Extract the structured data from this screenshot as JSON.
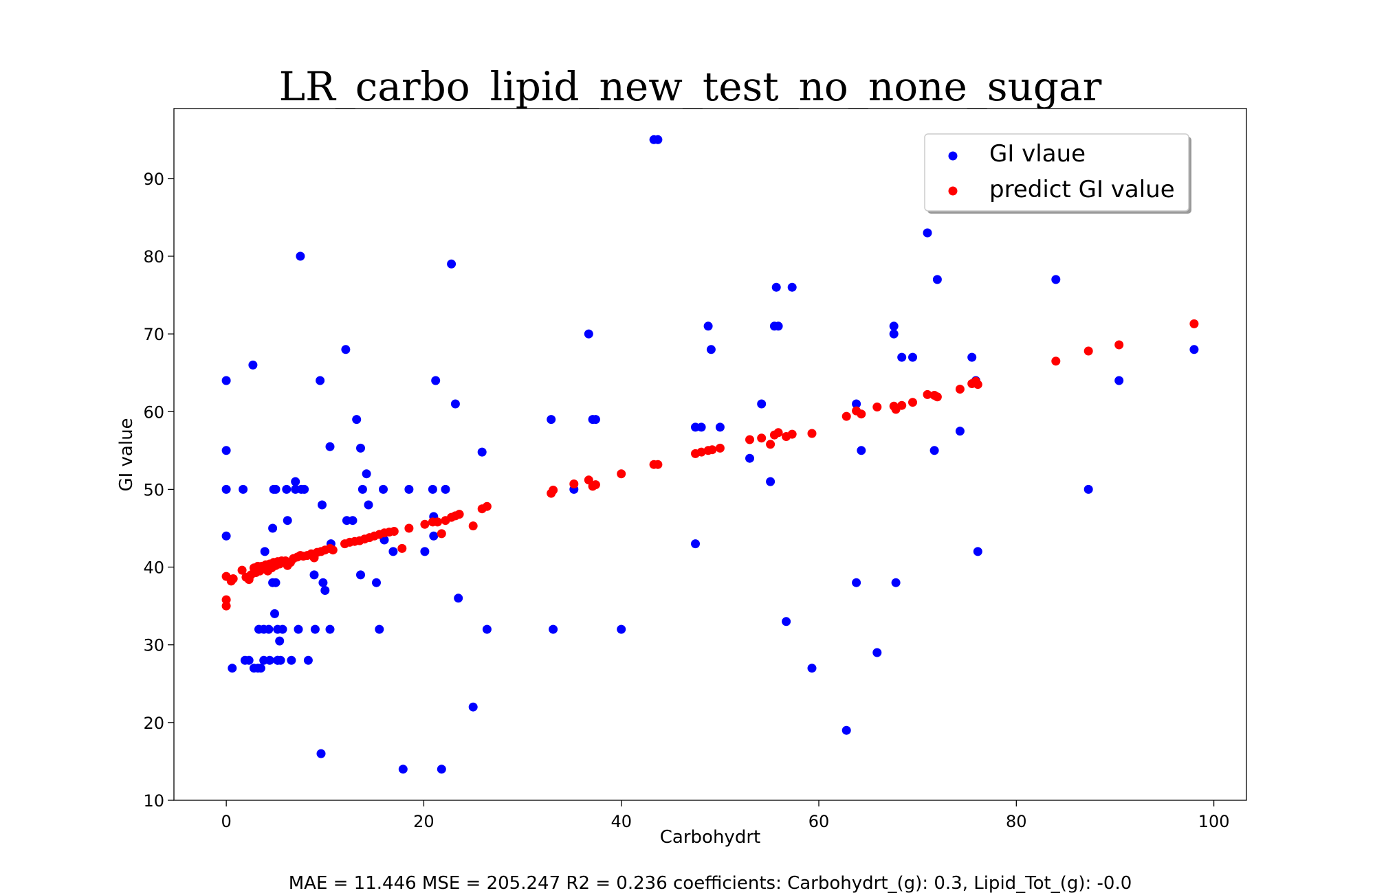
{
  "chart_data": {
    "type": "scatter",
    "title": "LR_carbo_lipid_new_test_no_none_sugar",
    "xlabel": "Carbohydrt",
    "ylabel": "GI value",
    "xlim": [
      -5.3,
      103.3
    ],
    "ylim": [
      10,
      99
    ],
    "xticks": [
      0,
      20,
      40,
      60,
      80,
      100
    ],
    "yticks": [
      10,
      20,
      30,
      40,
      50,
      60,
      70,
      80,
      90
    ],
    "grid": false,
    "legend_position": "top-right",
    "series": [
      {
        "name": "GI vlaue",
        "color": "#0000ff",
        "points": [
          [
            0,
            64
          ],
          [
            0,
            55
          ],
          [
            0,
            50
          ],
          [
            0,
            44
          ],
          [
            0.6,
            27
          ],
          [
            1.7,
            50
          ],
          [
            1.9,
            28
          ],
          [
            2.3,
            28
          ],
          [
            2.7,
            66
          ],
          [
            2.8,
            27
          ],
          [
            3.2,
            27
          ],
          [
            3.5,
            27
          ],
          [
            3.3,
            32
          ],
          [
            3.8,
            32
          ],
          [
            3.8,
            28
          ],
          [
            3.9,
            42
          ],
          [
            4.3,
            32
          ],
          [
            4.4,
            28
          ],
          [
            4.7,
            45
          ],
          [
            4.7,
            38
          ],
          [
            4.8,
            50
          ],
          [
            5.0,
            50
          ],
          [
            5.0,
            38
          ],
          [
            4.9,
            34
          ],
          [
            5.2,
            32
          ],
          [
            5.2,
            28
          ],
          [
            5.4,
            30.5
          ],
          [
            5.5,
            28
          ],
          [
            5.7,
            32
          ],
          [
            5.2,
            28
          ],
          [
            6.1,
            50
          ],
          [
            6.2,
            46
          ],
          [
            6.6,
            28
          ],
          [
            7.0,
            50
          ],
          [
            7.0,
            51
          ],
          [
            7.3,
            32
          ],
          [
            7.6,
            50
          ],
          [
            7.5,
            80
          ],
          [
            7.9,
            50
          ],
          [
            8.3,
            28
          ],
          [
            8.9,
            39
          ],
          [
            9.0,
            32
          ],
          [
            9.5,
            64
          ],
          [
            9.6,
            16
          ],
          [
            9.7,
            48
          ],
          [
            9.8,
            38
          ],
          [
            10.0,
            37
          ],
          [
            10.5,
            55.5
          ],
          [
            10.6,
            43
          ],
          [
            10.5,
            32
          ],
          [
            12.1,
            68
          ],
          [
            12.2,
            46
          ],
          [
            12.8,
            46
          ],
          [
            13.2,
            59
          ],
          [
            13.6,
            39
          ],
          [
            13.6,
            55.3
          ],
          [
            13.8,
            50
          ],
          [
            14.2,
            52
          ],
          [
            14.4,
            48
          ],
          [
            15.2,
            38
          ],
          [
            15.5,
            32
          ],
          [
            15.9,
            50
          ],
          [
            16.0,
            43.5
          ],
          [
            16.9,
            42
          ],
          [
            17.9,
            14
          ],
          [
            18.5,
            50
          ],
          [
            20.1,
            42
          ],
          [
            20.9,
            50
          ],
          [
            21.0,
            44
          ],
          [
            21.0,
            46.5
          ],
          [
            21.2,
            64
          ],
          [
            21.8,
            14
          ],
          [
            22.2,
            50
          ],
          [
            22.8,
            79
          ],
          [
            23.2,
            61
          ],
          [
            23.5,
            36
          ],
          [
            25.0,
            22
          ],
          [
            25.9,
            54.8
          ],
          [
            26.4,
            32
          ],
          [
            32.9,
            59
          ],
          [
            33.1,
            32
          ],
          [
            35.2,
            50
          ],
          [
            36.7,
            70
          ],
          [
            37.1,
            59
          ],
          [
            37.4,
            59
          ],
          [
            40.0,
            32
          ],
          [
            43.3,
            95
          ],
          [
            43.7,
            95
          ],
          [
            47.5,
            43
          ],
          [
            47.5,
            58
          ],
          [
            48.1,
            58
          ],
          [
            48.8,
            71
          ],
          [
            49.1,
            68
          ],
          [
            50.0,
            58
          ],
          [
            53.0,
            54
          ],
          [
            54.2,
            61
          ],
          [
            55.1,
            51
          ],
          [
            55.5,
            71
          ],
          [
            55.7,
            76
          ],
          [
            55.9,
            71
          ],
          [
            56.7,
            33
          ],
          [
            57.3,
            76
          ],
          [
            59.3,
            27
          ],
          [
            62.8,
            19
          ],
          [
            63.8,
            61
          ],
          [
            63.8,
            38
          ],
          [
            64.3,
            55
          ],
          [
            65.9,
            29
          ],
          [
            67.6,
            71
          ],
          [
            67.6,
            70
          ],
          [
            67.8,
            38
          ],
          [
            68.4,
            67
          ],
          [
            69.5,
            67
          ],
          [
            71.0,
            83
          ],
          [
            71.7,
            55
          ],
          [
            72.0,
            77
          ],
          [
            74.3,
            57.5
          ],
          [
            75.5,
            67
          ],
          [
            75.9,
            64
          ],
          [
            76.1,
            42
          ],
          [
            84.0,
            77
          ],
          [
            87.3,
            50
          ],
          [
            90.4,
            64
          ],
          [
            98.0,
            68
          ]
        ]
      },
      {
        "name": "predict GI value",
        "color": "#ff0000",
        "points": [
          [
            0,
            35
          ],
          [
            0,
            35.8
          ],
          [
            0,
            38.8
          ],
          [
            0.5,
            38.2
          ],
          [
            0.7,
            38.5
          ],
          [
            1.6,
            39.6
          ],
          [
            2.0,
            38.7
          ],
          [
            2.3,
            38.4
          ],
          [
            2.5,
            39
          ],
          [
            2.8,
            39.9
          ],
          [
            3.0,
            39.3
          ],
          [
            3.2,
            40.1
          ],
          [
            3.4,
            39.5
          ],
          [
            3.6,
            40.1
          ],
          [
            3.8,
            39.8
          ],
          [
            4.0,
            40.3
          ],
          [
            4.2,
            39.5
          ],
          [
            4.4,
            40.4
          ],
          [
            4.6,
            39.9
          ],
          [
            4.8,
            40.6
          ],
          [
            5.0,
            40.2
          ],
          [
            5.2,
            40.7
          ],
          [
            5.4,
            40.4
          ],
          [
            5.6,
            40.8
          ],
          [
            6.0,
            40.8
          ],
          [
            6.2,
            40.2
          ],
          [
            6.5,
            40.6
          ],
          [
            6.8,
            41.1
          ],
          [
            7.2,
            41.3
          ],
          [
            7.5,
            41.5
          ],
          [
            7.8,
            41.4
          ],
          [
            8.2,
            41.5
          ],
          [
            8.6,
            41.7
          ],
          [
            8.9,
            41.2
          ],
          [
            9.2,
            41.9
          ],
          [
            9.6,
            42
          ],
          [
            10.0,
            42.2
          ],
          [
            10.5,
            42.4
          ],
          [
            10.8,
            42.2
          ],
          [
            12.0,
            43
          ],
          [
            12.5,
            43.2
          ],
          [
            13.0,
            43.3
          ],
          [
            13.5,
            43.4
          ],
          [
            14.0,
            43.6
          ],
          [
            14.5,
            43.8
          ],
          [
            15.0,
            44
          ],
          [
            15.5,
            44.2
          ],
          [
            16.0,
            44.4
          ],
          [
            16.5,
            44.5
          ],
          [
            17.0,
            44.6
          ],
          [
            17.8,
            42.4
          ],
          [
            18.5,
            45
          ],
          [
            20.1,
            45.5
          ],
          [
            20.9,
            45.8
          ],
          [
            21.4,
            45.8
          ],
          [
            21.8,
            44.3
          ],
          [
            22.2,
            46
          ],
          [
            22.8,
            46.4
          ],
          [
            23.2,
            46.6
          ],
          [
            23.6,
            46.8
          ],
          [
            25.0,
            45.3
          ],
          [
            25.9,
            47.5
          ],
          [
            26.4,
            47.8
          ],
          [
            32.9,
            49.5
          ],
          [
            33.1,
            49.9
          ],
          [
            35.2,
            50.7
          ],
          [
            36.7,
            51.2
          ],
          [
            37.1,
            50.4
          ],
          [
            37.4,
            50.6
          ],
          [
            40.0,
            52
          ],
          [
            43.3,
            53.2
          ],
          [
            43.7,
            53.2
          ],
          [
            47.5,
            54.6
          ],
          [
            48.1,
            54.8
          ],
          [
            48.8,
            55
          ],
          [
            49.2,
            55.1
          ],
          [
            50.0,
            55.3
          ],
          [
            53.0,
            56.4
          ],
          [
            54.2,
            56.6
          ],
          [
            55.1,
            55.8
          ],
          [
            55.5,
            57
          ],
          [
            55.9,
            57.3
          ],
          [
            56.7,
            56.8
          ],
          [
            57.3,
            57.1
          ],
          [
            59.3,
            57.2
          ],
          [
            62.8,
            59.4
          ],
          [
            63.8,
            60.1
          ],
          [
            64.3,
            59.7
          ],
          [
            65.9,
            60.6
          ],
          [
            67.6,
            60.7
          ],
          [
            67.8,
            60.3
          ],
          [
            68.4,
            60.8
          ],
          [
            69.5,
            61.2
          ],
          [
            71.0,
            62.2
          ],
          [
            71.7,
            62.1
          ],
          [
            72.0,
            61.9
          ],
          [
            74.3,
            62.9
          ],
          [
            75.5,
            63.6
          ],
          [
            75.9,
            63.9
          ],
          [
            76.1,
            63.5
          ],
          [
            84.0,
            66.5
          ],
          [
            87.3,
            67.8
          ],
          [
            90.4,
            68.6
          ],
          [
            98.0,
            71.3
          ]
        ]
      }
    ],
    "footnote": "MAE = 11.446 MSE = 205.247 R2 = 0.236 coefficients: Carbohydrt_(g): 0.3, Lipid_Tot_(g): -0.0"
  }
}
